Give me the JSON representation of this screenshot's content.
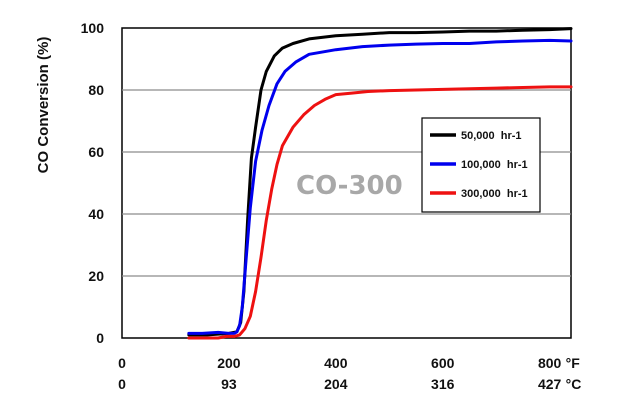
{
  "chart_data": {
    "type": "line",
    "ylabel": "CO Conversion (%)",
    "ylim": [
      0,
      100
    ],
    "yticks": [
      0,
      20,
      40,
      60,
      80,
      100
    ],
    "xlim": [
      0,
      840
    ],
    "x_unit_label": "°F",
    "x2_unit_label": "°C",
    "x_ticks_f": [
      0,
      200,
      400,
      600,
      800
    ],
    "x_ticks_f_labels": [
      "0",
      "200",
      "400",
      "600",
      "800"
    ],
    "x_ticks_c_labels": [
      "0",
      "93",
      "204",
      "316",
      "427"
    ],
    "grid": "horizontal",
    "legend_position": "right",
    "annotation": "CO-300",
    "series": [
      {
        "name": "50,000  hr-1",
        "color": "#000000",
        "x": [
          125,
          160,
          200,
          215,
          222,
          228,
          235,
          242,
          250,
          260,
          270,
          285,
          300,
          320,
          350,
          400,
          450,
          500,
          550,
          600,
          650,
          700,
          750,
          800,
          840
        ],
        "y": [
          1,
          1,
          1.5,
          2,
          5,
          15,
          38,
          58,
          68,
          80,
          86,
          91,
          93.5,
          95,
          96.5,
          97.5,
          98,
          98.5,
          98.5,
          98.7,
          99,
          99,
          99.3,
          99.5,
          99.8
        ]
      },
      {
        "name": "100,000  hr-1",
        "color": "#0000ee",
        "x": [
          125,
          150,
          180,
          200,
          210,
          215,
          220,
          225,
          232,
          240,
          250,
          262,
          275,
          290,
          305,
          325,
          350,
          400,
          450,
          500,
          550,
          600,
          650,
          700,
          750,
          800,
          840
        ],
        "y": [
          1.5,
          1.5,
          1.8,
          1.5,
          1.5,
          2,
          4,
          10,
          25,
          42,
          57,
          67,
          75,
          82,
          86,
          89,
          91.5,
          93,
          94,
          94.5,
          94.8,
          95,
          95,
          95.5,
          95.8,
          96,
          95.8
        ]
      },
      {
        "name": "300,000  hr-1",
        "color": "#ee1111",
        "x": [
          125,
          150,
          180,
          195,
          200,
          210,
          220,
          230,
          240,
          250,
          260,
          270,
          280,
          290,
          300,
          320,
          340,
          360,
          380,
          400,
          430,
          460,
          500,
          550,
          600,
          650,
          700,
          750,
          800,
          840
        ],
        "y": [
          0,
          0,
          0,
          0.5,
          0.5,
          0.5,
          1,
          3,
          7,
          15,
          26,
          38,
          48,
          56,
          62,
          68,
          72,
          75,
          77,
          78.5,
          79,
          79.5,
          79.8,
          80,
          80.2,
          80.4,
          80.6,
          80.8,
          81,
          81
        ]
      }
    ]
  }
}
